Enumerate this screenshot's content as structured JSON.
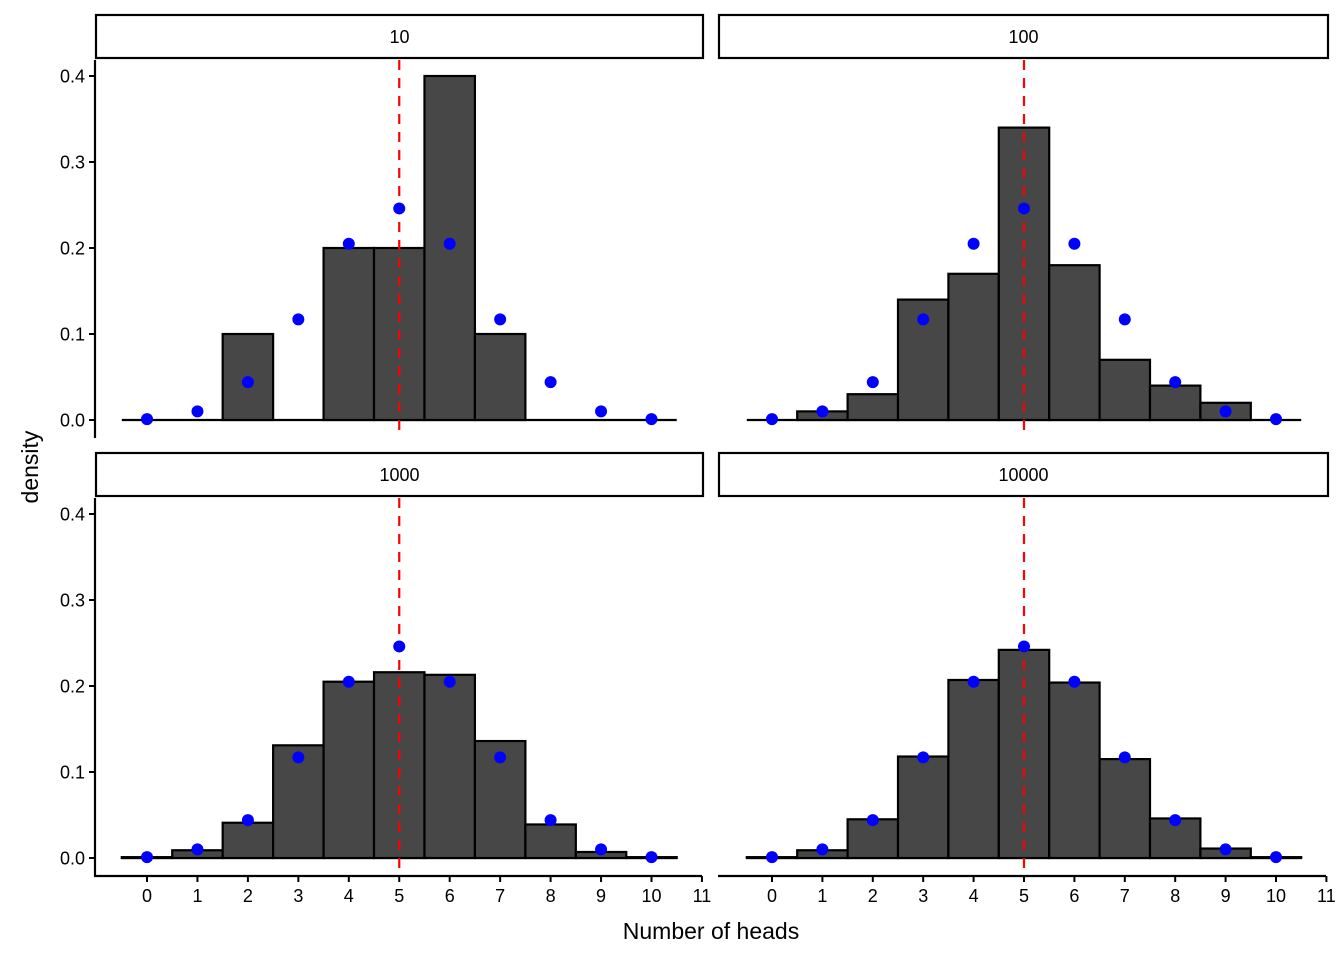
{
  "chart_data": {
    "type": "bar",
    "subtype": "faceted histogram with binomial probability points",
    "xlabel": "Number of heads",
    "ylabel": "density",
    "x_ticks": [
      "0",
      "1",
      "2",
      "3",
      "4",
      "5",
      "6",
      "7",
      "8",
      "9",
      "10",
      "11"
    ],
    "y_ticks": [
      "0.0",
      "0.1",
      "0.2",
      "0.3",
      "0.4"
    ],
    "xlim": [
      -0.5,
      11
    ],
    "ylim": [
      0,
      0.42
    ],
    "reference_line": {
      "x": 5,
      "color": "#FF0000",
      "style": "dashed"
    },
    "bar_color": "#474747",
    "point_color": "#0000FF",
    "categories": [
      0,
      1,
      2,
      3,
      4,
      5,
      6,
      7,
      8,
      9,
      10
    ],
    "binomial_points": [
      0.001,
      0.01,
      0.044,
      0.117,
      0.205,
      0.246,
      0.205,
      0.117,
      0.044,
      0.01,
      0.001
    ],
    "panels": [
      {
        "label": "10",
        "values": [
          0,
          0,
          0.1,
          0,
          0.2,
          0.2,
          0.4,
          0.1,
          0,
          0,
          0
        ]
      },
      {
        "label": "100",
        "values": [
          0,
          0.01,
          0.03,
          0.14,
          0.17,
          0.34,
          0.18,
          0.07,
          0.04,
          0.02,
          0
        ]
      },
      {
        "label": "1000",
        "values": [
          0.001,
          0.009,
          0.041,
          0.131,
          0.205,
          0.216,
          0.213,
          0.136,
          0.039,
          0.007,
          0.001
        ]
      },
      {
        "label": "10000",
        "values": [
          0.001,
          0.009,
          0.045,
          0.118,
          0.207,
          0.242,
          0.204,
          0.115,
          0.046,
          0.011,
          0.001
        ]
      }
    ],
    "grid": false
  }
}
